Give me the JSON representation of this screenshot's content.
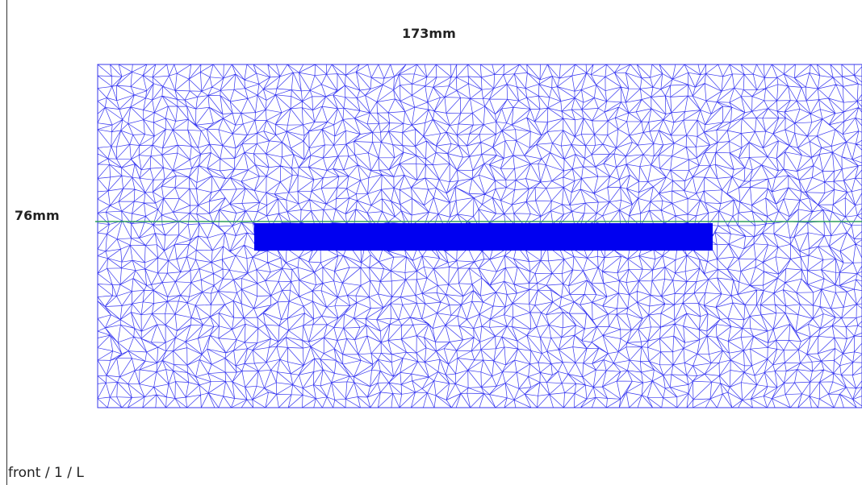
{
  "view": {
    "width_label": "173mm",
    "height_label": "76mm",
    "status": "front / 1 / L"
  }
}
